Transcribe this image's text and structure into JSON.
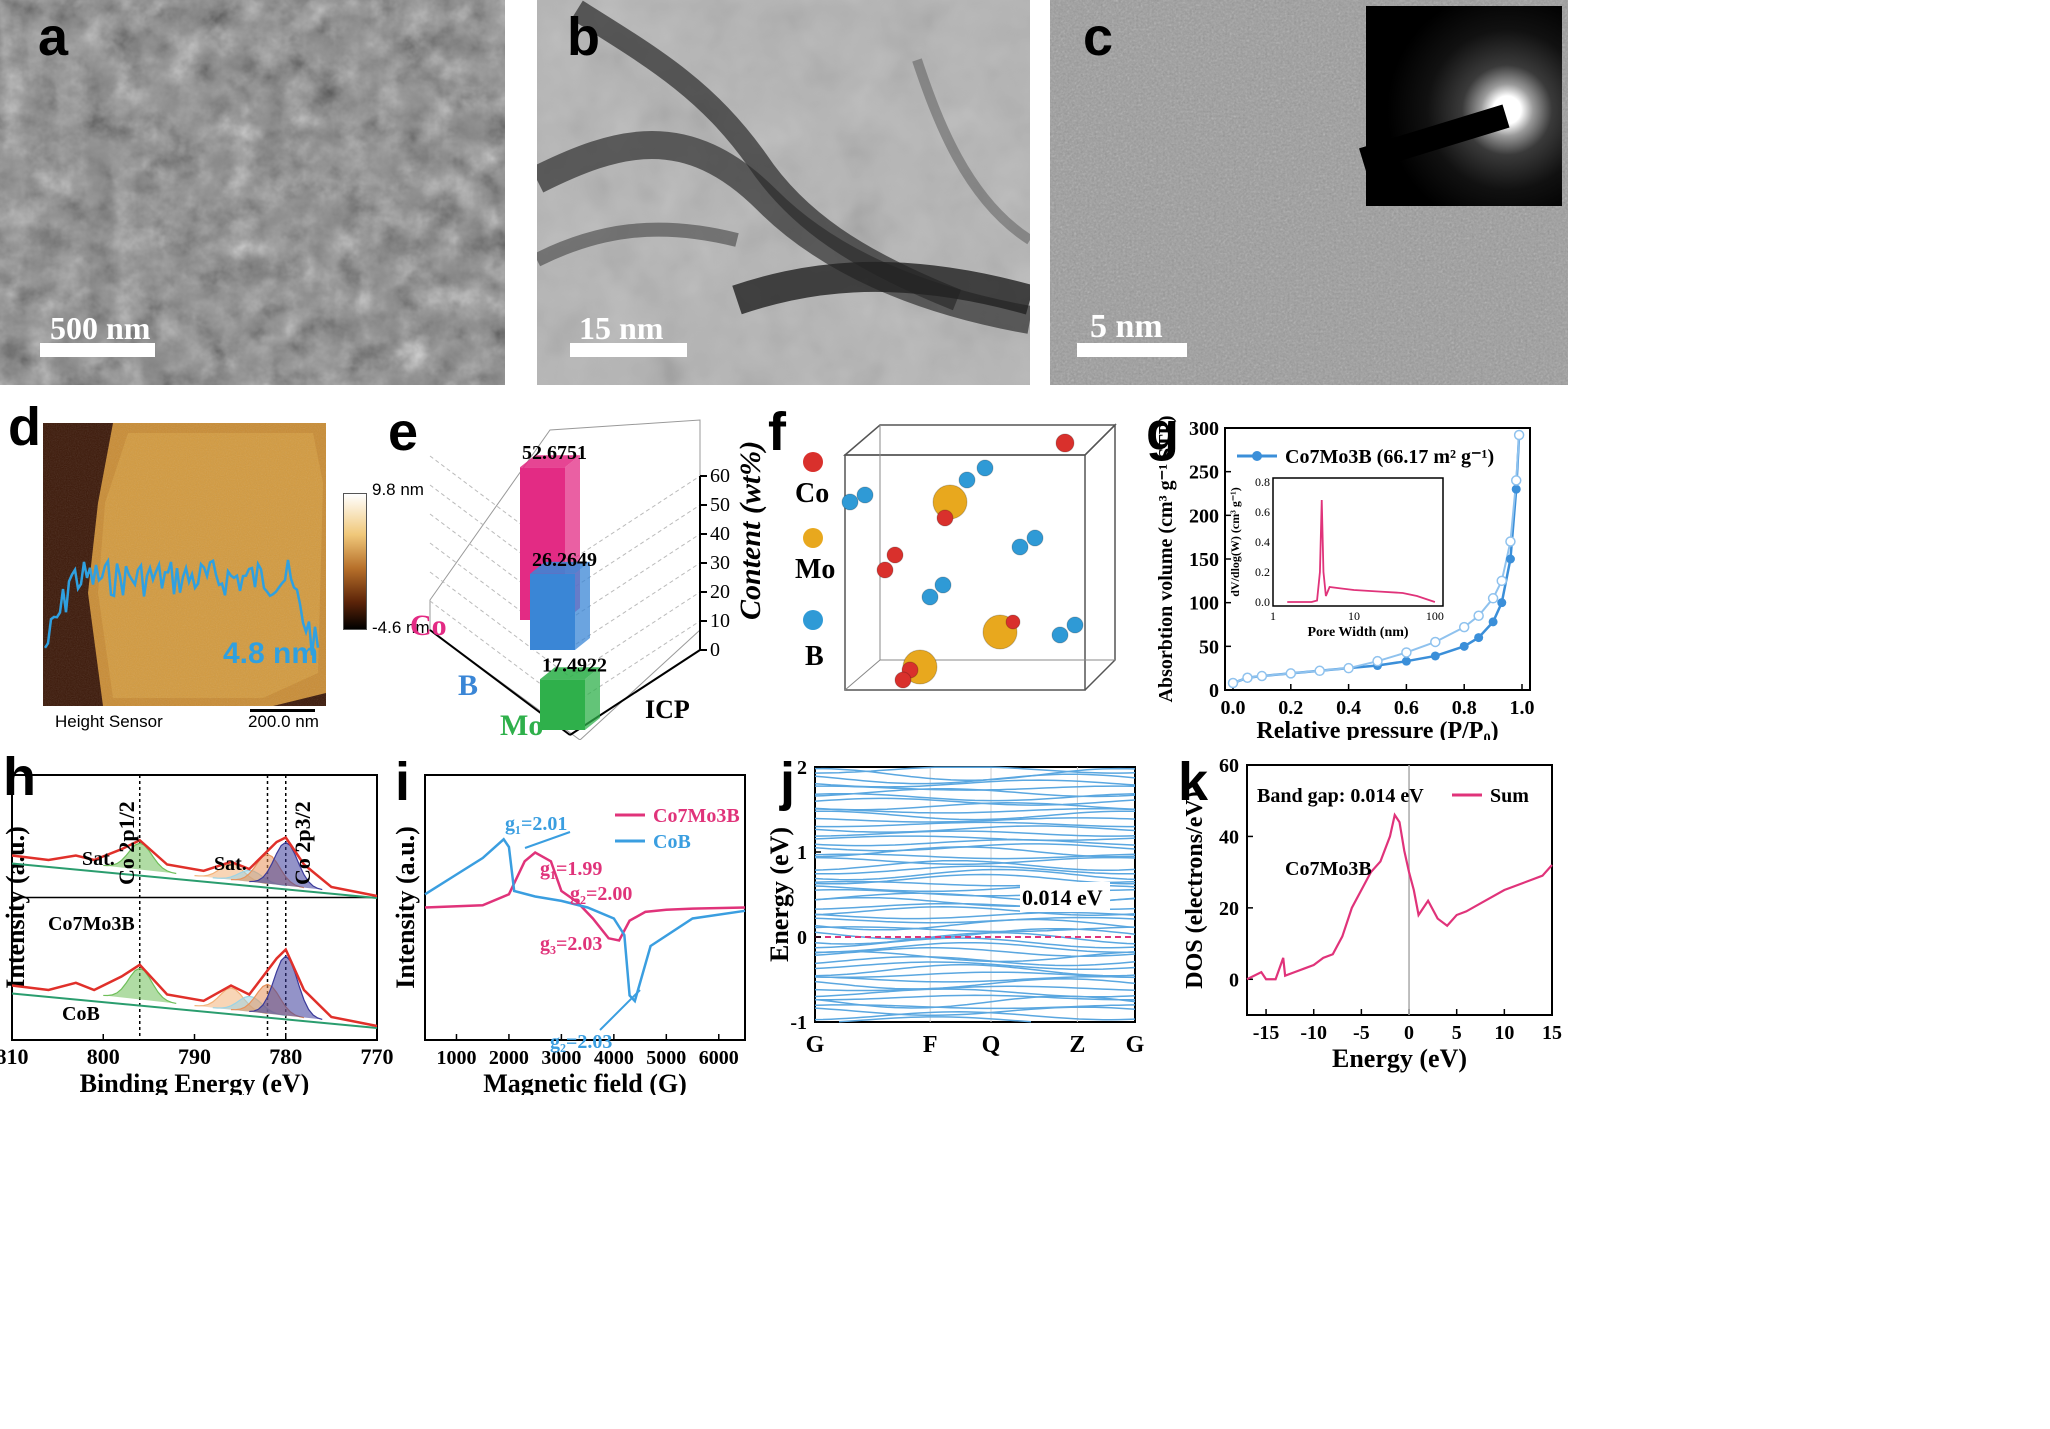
{
  "panels": {
    "a": {
      "label": "a",
      "scalebar": "500 nm"
    },
    "b": {
      "label": "b",
      "scalebar": "15 nm"
    },
    "c": {
      "label": "c",
      "scalebar": "5 nm"
    },
    "d": {
      "label": "d",
      "colorbar_max": "9.8 nm",
      "colorbar_min": "-4.6 nm",
      "profile_text": "4.8 nm",
      "footer_left": "Height Sensor",
      "footer_scale": "200.0 nm"
    },
    "e": {
      "label": "e"
    },
    "f": {
      "label": "f",
      "legend": [
        {
          "name": "Co",
          "color": "#d9302c"
        },
        {
          "name": "Mo",
          "color": "#e8a81e"
        },
        {
          "name": "B",
          "color": "#2f9ad6"
        }
      ]
    },
    "g": {
      "label": "g",
      "legend": "Co7Mo3B (66.17 m² g⁻¹)",
      "inset_ylabel": "dV/dlog(W) (cm³ g⁻¹)",
      "inset_xlabel": "Pore Width (nm)"
    },
    "h": {
      "label": "h",
      "curve1": "Co7Mo3B",
      "curve2": "CoB",
      "sat1": "Sat.",
      "sat2": "Sat.",
      "peak1": "Co 2p1/2",
      "peak2": "Co 2p3/2"
    },
    "i": {
      "label": "i",
      "g_labels": [
        {
          "text": "g₁=2.01",
          "color": "#3a9ee0"
        },
        {
          "text": "g₁=1.99",
          "color": "#e0337a"
        },
        {
          "text": "g₂=2.00",
          "color": "#e0337a"
        },
        {
          "text": "g₃=2.03",
          "color": "#e0337a"
        },
        {
          "text": "g₂=2.03",
          "color": "#3a9ee0"
        }
      ]
    },
    "j": {
      "label": "j",
      "gap_text": "0.014 eV"
    },
    "k": {
      "label": "k",
      "bandgap": "Band gap: 0.014 eV",
      "compound": "Co7Mo3B"
    }
  },
  "chart_data": [
    {
      "panel": "e",
      "type": "bar",
      "categories": [
        "Co",
        "B",
        "Mo"
      ],
      "values": [
        52.6751,
        26.2649,
        17.4922
      ],
      "value_labels": [
        "52.6751",
        "26.2649",
        "17.4922"
      ],
      "colors": [
        "#e32b84",
        "#3a86d6",
        "#2fb04b"
      ],
      "ylabel": "Content (wt%)",
      "xlabel": "ICP",
      "yticks": [
        0,
        10,
        20,
        30,
        40,
        50,
        60
      ],
      "ylim": [
        0,
        60
      ]
    },
    {
      "panel": "g",
      "type": "line",
      "xlabel": "Relative pressure (P/P₀)",
      "ylabel": "Absorbtion volume (cm³ g⁻¹ STP)",
      "xlim": [
        0,
        1.0
      ],
      "ylim": [
        0,
        300
      ],
      "xticks": [
        "0.0",
        "0.2",
        "0.4",
        "0.6",
        "0.8",
        "1.0"
      ],
      "yticks": [
        "0",
        "50",
        "100",
        "150",
        "200",
        "250",
        "300"
      ],
      "series": [
        {
          "name": "Co7Mo3B (66.17 m² g⁻¹)",
          "x": [
            0.0,
            0.05,
            0.1,
            0.2,
            0.3,
            0.4,
            0.5,
            0.6,
            0.7,
            0.8,
            0.85,
            0.9,
            0.93,
            0.96,
            0.98,
            0.99
          ],
          "y": [
            8,
            14,
            16,
            19,
            22,
            25,
            28,
            33,
            39,
            50,
            60,
            78,
            100,
            150,
            230,
            292
          ],
          "desorption_y": [
            8,
            14,
            16,
            19,
            22,
            25,
            33,
            43,
            55,
            72,
            85,
            105,
            125,
            170,
            240,
            292
          ]
        }
      ],
      "inset": {
        "xlabel": "Pore Width (nm)",
        "ylabel": "dV/dlog(W) (cm³ g⁻¹)",
        "xscale": "log",
        "xticks": [
          "1",
          "10",
          "100"
        ],
        "yticks": [
          "0.0",
          "0.2",
          "0.4",
          "0.6",
          "0.8"
        ],
        "x": [
          1.5,
          2,
          3,
          3.5,
          3.8,
          4.0,
          4.2,
          4.5,
          5,
          7,
          10,
          20,
          40,
          60,
          100
        ],
        "y": [
          0.0,
          0.0,
          0.0,
          0.01,
          0.2,
          0.68,
          0.2,
          0.04,
          0.1,
          0.09,
          0.08,
          0.07,
          0.06,
          0.04,
          0.0
        ]
      }
    },
    {
      "panel": "h",
      "type": "line",
      "xlabel": "Binding Energy (eV)",
      "ylabel": "Intensity (a.u.)",
      "xlim": [
        810,
        770
      ],
      "xticks": [
        "810",
        "800",
        "790",
        "780",
        "770"
      ],
      "series": [
        {
          "name": "Co7Mo3B",
          "x": [
            810,
            806,
            803,
            801,
            798,
            796,
            793,
            789,
            786,
            784,
            781,
            780,
            778,
            775,
            772,
            770
          ],
          "y": [
            0.55,
            0.5,
            0.55,
            0.5,
            0.62,
            0.72,
            0.45,
            0.38,
            0.48,
            0.4,
            0.7,
            0.75,
            0.45,
            0.2,
            0.14,
            0.1
          ]
        },
        {
          "name": "CoB",
          "x": [
            810,
            806,
            803,
            801,
            798,
            796,
            793,
            789,
            786,
            784,
            781,
            780,
            778,
            775,
            772,
            770
          ],
          "y": [
            0.55,
            0.5,
            0.58,
            0.5,
            0.65,
            0.78,
            0.45,
            0.38,
            0.55,
            0.45,
            0.85,
            0.95,
            0.5,
            0.2,
            0.14,
            0.1
          ]
        }
      ]
    },
    {
      "panel": "i",
      "type": "line",
      "xlabel": "Magnetic field (G)",
      "ylabel": "Intensity (a.u.)",
      "xlim": [
        400,
        6500
      ],
      "xticks": [
        "1000",
        "2000",
        "3000",
        "4000",
        "5000",
        "6000"
      ],
      "series": [
        {
          "name": "Co7Mo3B",
          "x": [
            400,
            1500,
            2000,
            2300,
            2500,
            2800,
            3000,
            3300,
            3600,
            3900,
            4100,
            4300,
            4600,
            5000,
            5500,
            6500
          ],
          "y": [
            0.0,
            0.02,
            0.12,
            0.42,
            0.5,
            0.42,
            0.15,
            0.05,
            -0.1,
            -0.28,
            -0.3,
            -0.12,
            -0.04,
            -0.02,
            -0.01,
            0.0
          ]
        },
        {
          "name": "CoB",
          "x": [
            400,
            1000,
            1500,
            1900,
            2000,
            2100,
            2500,
            3000,
            3500,
            4000,
            4200,
            4300,
            4400,
            4700,
            5500,
            6500
          ],
          "y": [
            0.12,
            0.3,
            0.45,
            0.62,
            0.55,
            0.15,
            0.1,
            0.06,
            0.0,
            -0.1,
            -0.25,
            -0.8,
            -0.85,
            -0.35,
            -0.1,
            -0.03
          ]
        }
      ]
    },
    {
      "panel": "j",
      "type": "line",
      "ylabel": "Energy (eV)",
      "xticks": [
        "G",
        "F",
        "Q",
        "Z",
        "G"
      ],
      "yticks": [
        "-1",
        "0",
        "1",
        "2"
      ],
      "ylim": [
        -1,
        2
      ],
      "annotation": "0.014 eV"
    },
    {
      "panel": "k",
      "type": "line",
      "xlabel": "Energy (eV)",
      "ylabel": "DOS (electrons/eV)",
      "xlim": [
        -17,
        15
      ],
      "ylim": [
        -10,
        60
      ],
      "xticks": [
        "-15",
        "-10",
        "-5",
        "0",
        "5",
        "10",
        "15"
      ],
      "yticks": [
        "0",
        "20",
        "40",
        "60"
      ],
      "series": [
        {
          "name": "Sum",
          "x": [
            -17,
            -15.5,
            -15,
            -14,
            -13.2,
            -13,
            -12,
            -11,
            -10,
            -9,
            -8,
            -7,
            -6,
            -5,
            -4,
            -3,
            -2,
            -1.5,
            -1,
            -0.5,
            0,
            0.5,
            1,
            2,
            3,
            4,
            5,
            6,
            8,
            10,
            12,
            14,
            15
          ],
          "y": [
            0,
            2,
            0,
            0,
            6,
            1,
            2,
            3,
            4,
            6,
            7,
            12,
            20,
            25,
            30,
            33,
            40,
            46,
            44,
            36,
            30,
            25,
            18,
            22,
            17,
            15,
            18,
            19,
            22,
            25,
            27,
            29,
            32
          ]
        }
      ]
    }
  ]
}
